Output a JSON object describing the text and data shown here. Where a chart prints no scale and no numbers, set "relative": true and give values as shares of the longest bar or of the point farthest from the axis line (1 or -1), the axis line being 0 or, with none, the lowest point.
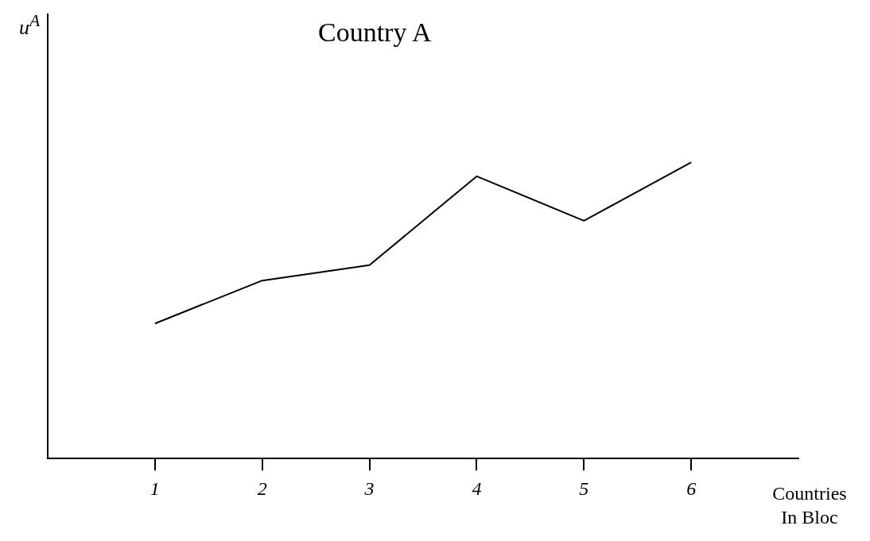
{
  "chart_data": {
    "type": "line",
    "title": "Country A",
    "xlabel": "Countries In Bloc",
    "annotations": [
      "u$^{A}$"
    ],
    "relative": true,
    "legend": false,
    "grid": false,
    "categories": [
      "1",
      "2",
      "3",
      "4",
      "5",
      "6"
    ],
    "series": [
      {
        "color": "#000000",
        "values": [
          0.456,
          0.601,
          0.653,
          0.953,
          0.803,
          1
        ]
      }
    ]
  }
}
